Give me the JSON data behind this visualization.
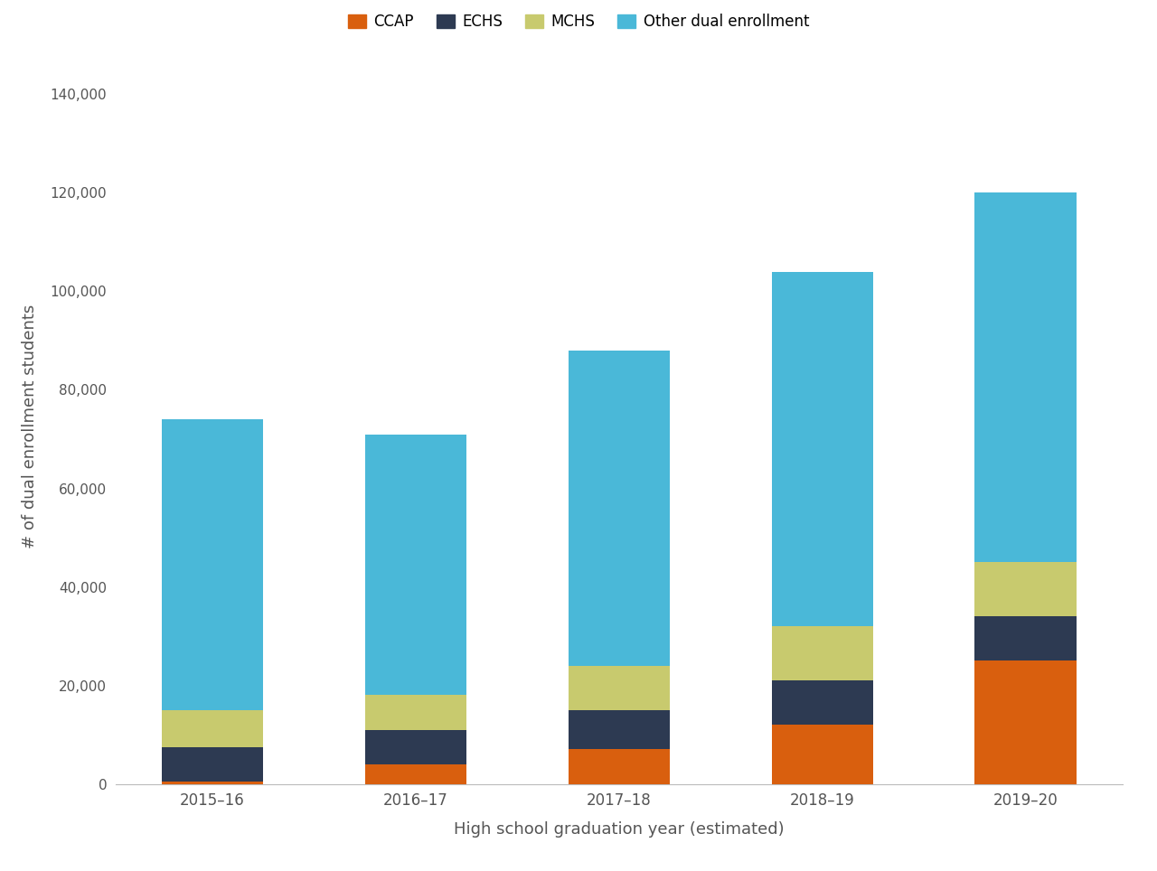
{
  "categories": [
    "2015–16",
    "2016–17",
    "2017–18",
    "2018–19",
    "2019–20"
  ],
  "ccap": [
    500,
    4000,
    7000,
    12000,
    25000
  ],
  "echs": [
    7000,
    7000,
    8000,
    9000,
    9000
  ],
  "mchs": [
    7500,
    7000,
    9000,
    11000,
    11000
  ],
  "other": [
    59000,
    53000,
    64000,
    72000,
    75000
  ],
  "colors": {
    "ccap": "#d95f0e",
    "echs": "#2d3a52",
    "mchs": "#c8ca6e",
    "other": "#4ab8d8"
  },
  "ylabel": "# of dual enrollment students",
  "xlabel": "High school graduation year (estimated)",
  "ylim": [
    0,
    145000
  ],
  "yticks": [
    0,
    20000,
    40000,
    60000,
    80000,
    100000,
    120000,
    140000
  ],
  "bar_width": 0.5,
  "figsize": [
    12.8,
    9.64
  ],
  "dpi": 100,
  "bg_color": "#ffffff"
}
